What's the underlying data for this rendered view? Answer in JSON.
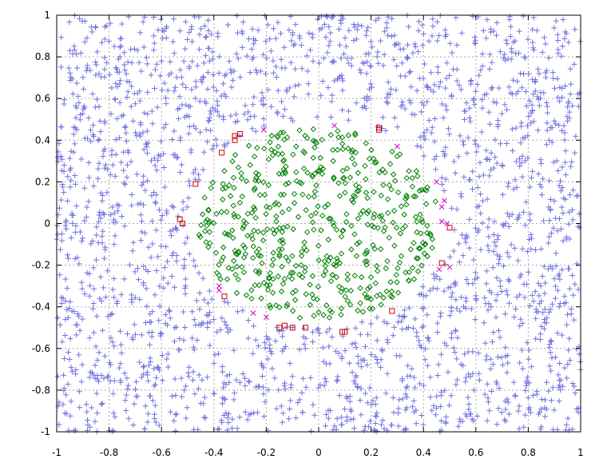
{
  "chart_data": {
    "type": "scatter",
    "title": "",
    "xlabel": "",
    "ylabel": "",
    "xlim": [
      -1,
      1
    ],
    "ylim": [
      -1,
      1
    ],
    "grid": true,
    "legend": "none",
    "x_ticks": [
      "-1",
      "-0.8",
      "-0.6",
      "-0.4",
      "-0.2",
      "0",
      "0.2",
      "0.4",
      "0.6",
      "0.8",
      "1"
    ],
    "y_ticks": [
      "1",
      "0.8",
      "0.6",
      "0.4",
      "0.2",
      "0",
      "-0.2",
      "-0.4",
      "-0.6",
      "-0.8",
      "-1"
    ],
    "series": [
      {
        "marker": "plus",
        "color": "#7070e0",
        "region": "outside radius 0.5",
        "approx_count": 2200
      },
      {
        "marker": "diamond",
        "color": "#008000",
        "region": "inside radius 0.45",
        "approx_count": 520
      },
      {
        "marker": "square",
        "color": "#d00000",
        "region": "boundary ring",
        "points": [
          [
            -0.32,
            0.42
          ],
          [
            -0.3,
            0.43
          ],
          [
            -0.32,
            0.4
          ],
          [
            -0.37,
            0.34
          ],
          [
            -0.47,
            0.19
          ],
          [
            -0.53,
            0.02
          ],
          [
            -0.52,
            0.0
          ],
          [
            0.23,
            0.45
          ],
          [
            0.23,
            0.46
          ],
          [
            0.5,
            -0.02
          ],
          [
            0.47,
            -0.19
          ],
          [
            0.28,
            -0.42
          ],
          [
            0.09,
            -0.52
          ],
          [
            0.1,
            -0.52
          ],
          [
            -0.05,
            -0.5
          ],
          [
            -0.1,
            -0.5
          ],
          [
            -0.13,
            -0.49
          ],
          [
            -0.15,
            -0.5
          ],
          [
            -0.36,
            -0.35
          ]
        ]
      },
      {
        "marker": "cross",
        "color": "#d000d0",
        "region": "boundary ring",
        "points": [
          [
            -0.21,
            0.45
          ],
          [
            0.06,
            0.47
          ],
          [
            0.3,
            0.37
          ],
          [
            0.45,
            0.2
          ],
          [
            0.47,
            0.08
          ],
          [
            0.48,
            0.11
          ],
          [
            0.47,
            0.01
          ],
          [
            0.49,
            0.0
          ],
          [
            -0.38,
            -0.3
          ],
          [
            -0.38,
            -0.32
          ],
          [
            -0.25,
            -0.43
          ],
          [
            -0.2,
            -0.45
          ],
          [
            0.5,
            -0.21
          ],
          [
            0.46,
            -0.22
          ]
        ]
      }
    ]
  }
}
